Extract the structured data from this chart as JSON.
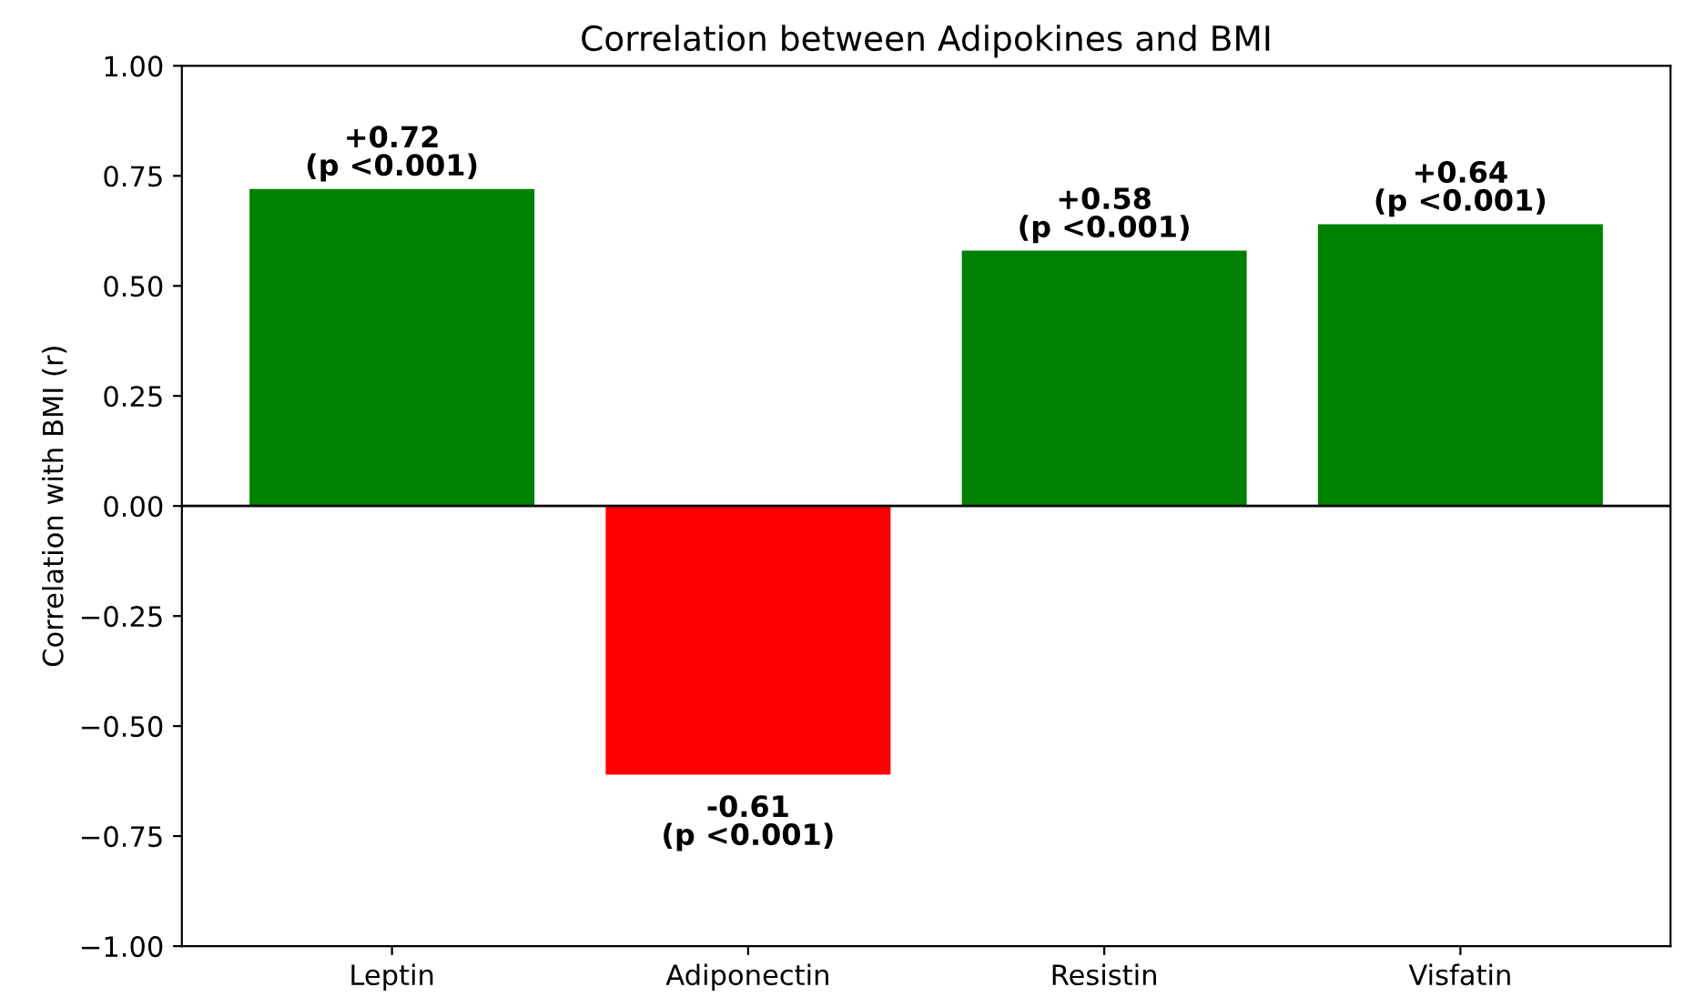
{
  "chart_data": {
    "type": "bar",
    "title": "Correlation between Adipokines and BMI",
    "ylabel": "Correlation with BMI (r)",
    "categories": [
      "Leptin",
      "Adiponectin",
      "Resistin",
      "Visfatin"
    ],
    "values": [
      0.72,
      -0.61,
      0.58,
      0.64
    ],
    "colors": [
      "#008000",
      "#ff0000",
      "#008000",
      "#008000"
    ],
    "value_labels": [
      "+0.72\n(p <0.001)",
      "-0.61\n(p <0.001)",
      "+0.58\n(p <0.001)",
      "+0.64\n(p <0.001)"
    ],
    "ylim": [
      -1.0,
      1.0
    ],
    "yticks": [
      {
        "value": -1.0,
        "label": "−1.00"
      },
      {
        "value": -0.75,
        "label": "−0.75"
      },
      {
        "value": -0.5,
        "label": "−0.50"
      },
      {
        "value": -0.25,
        "label": "−0.25"
      },
      {
        "value": 0,
        "label": "0.00"
      },
      {
        "value": 0.25,
        "label": "0.25"
      },
      {
        "value": 0.5,
        "label": "0.50"
      },
      {
        "value": 0.75,
        "label": "0.75"
      },
      {
        "value": 1.0,
        "label": "1.00"
      }
    ],
    "ref_lines": [
      {
        "axis": "y",
        "value": 0,
        "color": "#000000",
        "line_style": "solid"
      }
    ],
    "grid": false,
    "legend": false
  }
}
